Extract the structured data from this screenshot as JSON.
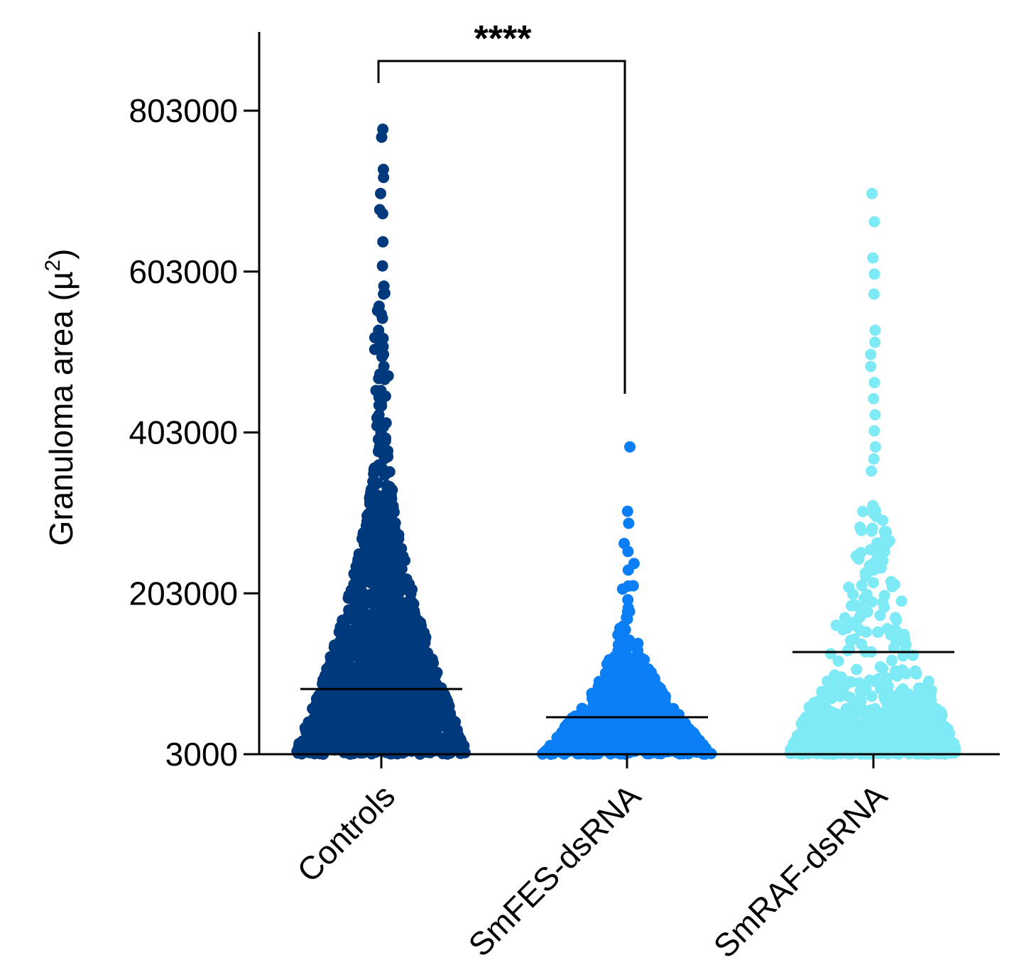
{
  "chart_data": {
    "type": "scatter",
    "subtype": "beeswarm",
    "ylabel": "Granuloma area (µ²)",
    "ylabel_main": "Granuloma area (µ",
    "ylabel_sup": "2",
    "ylabel_end": ")",
    "ylim": [
      3000,
      880000
    ],
    "yticks": [
      3000,
      203000,
      403000,
      603000,
      803000
    ],
    "ytick_labels": [
      "3000",
      "203000",
      "403000",
      "603000",
      "803000"
    ],
    "categories": [
      "Controls",
      "SmFES-dsRNA",
      "SmRAF-dsRNA"
    ],
    "series": [
      {
        "category": "Controls",
        "color": "#003a7d",
        "mean": 84000,
        "max": 780000,
        "highlights": [
          780000,
          770000,
          730000,
          720000,
          700000,
          680000,
          675000,
          640000,
          610000,
          585000,
          575000,
          560000,
          550000,
          530000,
          520000,
          500000,
          485000,
          470000,
          455000,
          440000,
          425000,
          410000,
          395000,
          380000
        ]
      },
      {
        "category": "SmFES-dsRNA",
        "color": "#0a7ef5",
        "mean": 49000,
        "max": 385000,
        "highlights": [
          385000,
          305000,
          290000,
          265000,
          255000,
          232000,
          212000,
          195000,
          185000
        ]
      },
      {
        "category": "SmRAF-dsRNA",
        "color": "#7eeaf5",
        "mean": 130000,
        "max": 700000,
        "highlights": [
          700000,
          665000,
          620000,
          600000,
          575000,
          530000,
          515000,
          500000,
          485000,
          465000,
          445000,
          425000,
          405000,
          385000,
          370000,
          355000
        ]
      }
    ],
    "significance": {
      "label": "****",
      "between": [
        "Controls",
        "SmFES-dsRNA"
      ]
    },
    "grid": false,
    "legend": "none"
  }
}
